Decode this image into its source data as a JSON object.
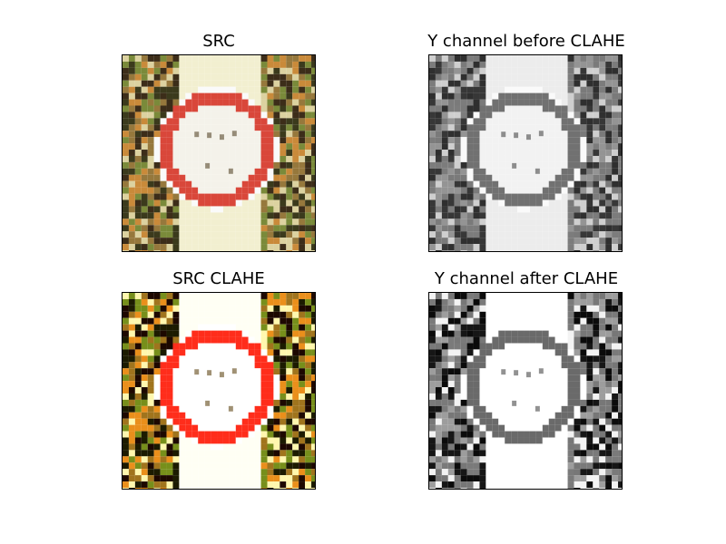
{
  "panels": [
    {
      "title": "SRC",
      "mode": "color",
      "contrast": "original"
    },
    {
      "title": "Y channel before CLAHE",
      "mode": "gray",
      "contrast": "original"
    },
    {
      "title": "SRC CLAHE",
      "mode": "color",
      "contrast": "enhanced"
    },
    {
      "title": "Y channel after CLAHE",
      "mode": "gray",
      "contrast": "enhanced"
    }
  ],
  "colors": {
    "ring": "#d9473a",
    "sign_face": "#f4f2ea",
    "post_light": "#f2efd0",
    "clutter_dark": "#3b3a1c",
    "clutter_green": "#7a8a3a",
    "clutter_orange": "#c98a3a"
  }
}
